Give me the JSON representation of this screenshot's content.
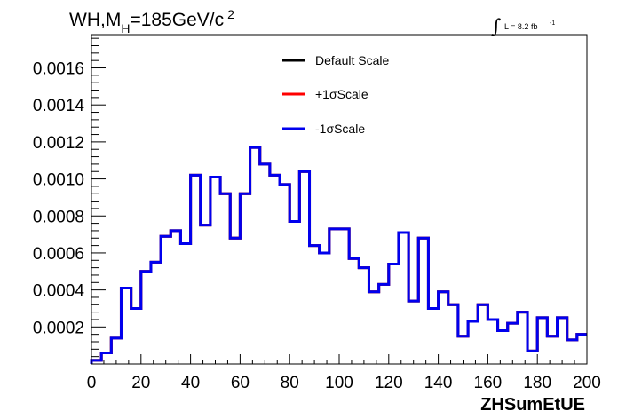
{
  "chart_data": {
    "type": "line",
    "title_main": "WH,M",
    "title_sub": "H",
    "title_rest": "=185GeV/c",
    "title_sup": "2",
    "lumi_label": "L = 8.2 fb",
    "lumi_sup": "-1",
    "xlabel": "ZHSumEtUE",
    "ylabel": "",
    "xlim": [
      0,
      200
    ],
    "ylim": [
      0,
      0.00178
    ],
    "x_ticks": [
      "0",
      "20",
      "40",
      "60",
      "80",
      "100",
      "120",
      "140",
      "160",
      "180",
      "200"
    ],
    "y_ticks": [
      "0.0002",
      "0.0004",
      "0.0006",
      "0.0008",
      "0.0010",
      "0.0012",
      "0.0014",
      "0.0016"
    ],
    "grid": false,
    "legend_position": "top-center",
    "bin_edges": [
      0,
      4,
      8,
      12,
      16,
      20,
      24,
      28,
      32,
      36,
      40,
      44,
      48,
      52,
      56,
      60,
      64,
      68,
      72,
      76,
      80,
      84,
      88,
      92,
      96,
      100,
      104,
      108,
      112,
      116,
      120,
      124,
      128,
      132,
      136,
      140,
      144,
      148,
      152,
      156,
      160,
      164,
      168,
      172,
      176,
      180,
      184,
      188,
      192,
      196,
      200
    ],
    "series": [
      {
        "name": "Default Scale",
        "color": "#000000",
        "values": [
          2e-05,
          6e-05,
          0.00014,
          0.00041,
          0.0003,
          0.0005,
          0.00055,
          0.00069,
          0.00072,
          0.00065,
          0.00102,
          0.00075,
          0.00101,
          0.00092,
          0.00068,
          0.00092,
          0.00117,
          0.00108,
          0.00102,
          0.00097,
          0.00077,
          0.00104,
          0.00064,
          0.0006,
          0.00073,
          0.00073,
          0.00057,
          0.00052,
          0.00039,
          0.00043,
          0.00054,
          0.00071,
          0.00034,
          0.00068,
          0.0003,
          0.00039,
          0.00032,
          0.00015,
          0.00023,
          0.00032,
          0.00024,
          0.00018,
          0.00022,
          0.00028,
          7e-05,
          0.00025,
          0.00015,
          0.00025,
          0.00013,
          0.00016
        ]
      },
      {
        "name": "+1σScale",
        "color": "#ff0000",
        "values": [
          2e-05,
          6e-05,
          0.00014,
          0.00041,
          0.0003,
          0.0005,
          0.00055,
          0.00069,
          0.00072,
          0.00065,
          0.00102,
          0.00075,
          0.00101,
          0.00092,
          0.00068,
          0.00092,
          0.00117,
          0.00108,
          0.00102,
          0.00097,
          0.00077,
          0.00104,
          0.00064,
          0.0006,
          0.00073,
          0.00073,
          0.00057,
          0.00052,
          0.00039,
          0.00043,
          0.00054,
          0.00071,
          0.00034,
          0.00068,
          0.0003,
          0.00039,
          0.00032,
          0.00015,
          0.00023,
          0.00032,
          0.00024,
          0.00018,
          0.00022,
          0.00028,
          7e-05,
          0.00025,
          0.00015,
          0.00025,
          0.00013,
          0.00016
        ]
      },
      {
        "name": "-1σScale",
        "color": "#0000ee",
        "values": [
          2e-05,
          6e-05,
          0.00014,
          0.00041,
          0.0003,
          0.0005,
          0.00055,
          0.00069,
          0.00072,
          0.00065,
          0.00102,
          0.00075,
          0.00101,
          0.00092,
          0.00068,
          0.00092,
          0.00117,
          0.00108,
          0.00102,
          0.00097,
          0.00077,
          0.00104,
          0.00064,
          0.0006,
          0.00073,
          0.00073,
          0.00057,
          0.00052,
          0.00039,
          0.00043,
          0.00054,
          0.00071,
          0.00034,
          0.00068,
          0.0003,
          0.00039,
          0.00032,
          0.00015,
          0.00023,
          0.00032,
          0.00024,
          0.00018,
          0.00022,
          0.00028,
          7e-05,
          0.00025,
          0.00015,
          0.00025,
          0.00013,
          0.00016
        ]
      }
    ]
  }
}
